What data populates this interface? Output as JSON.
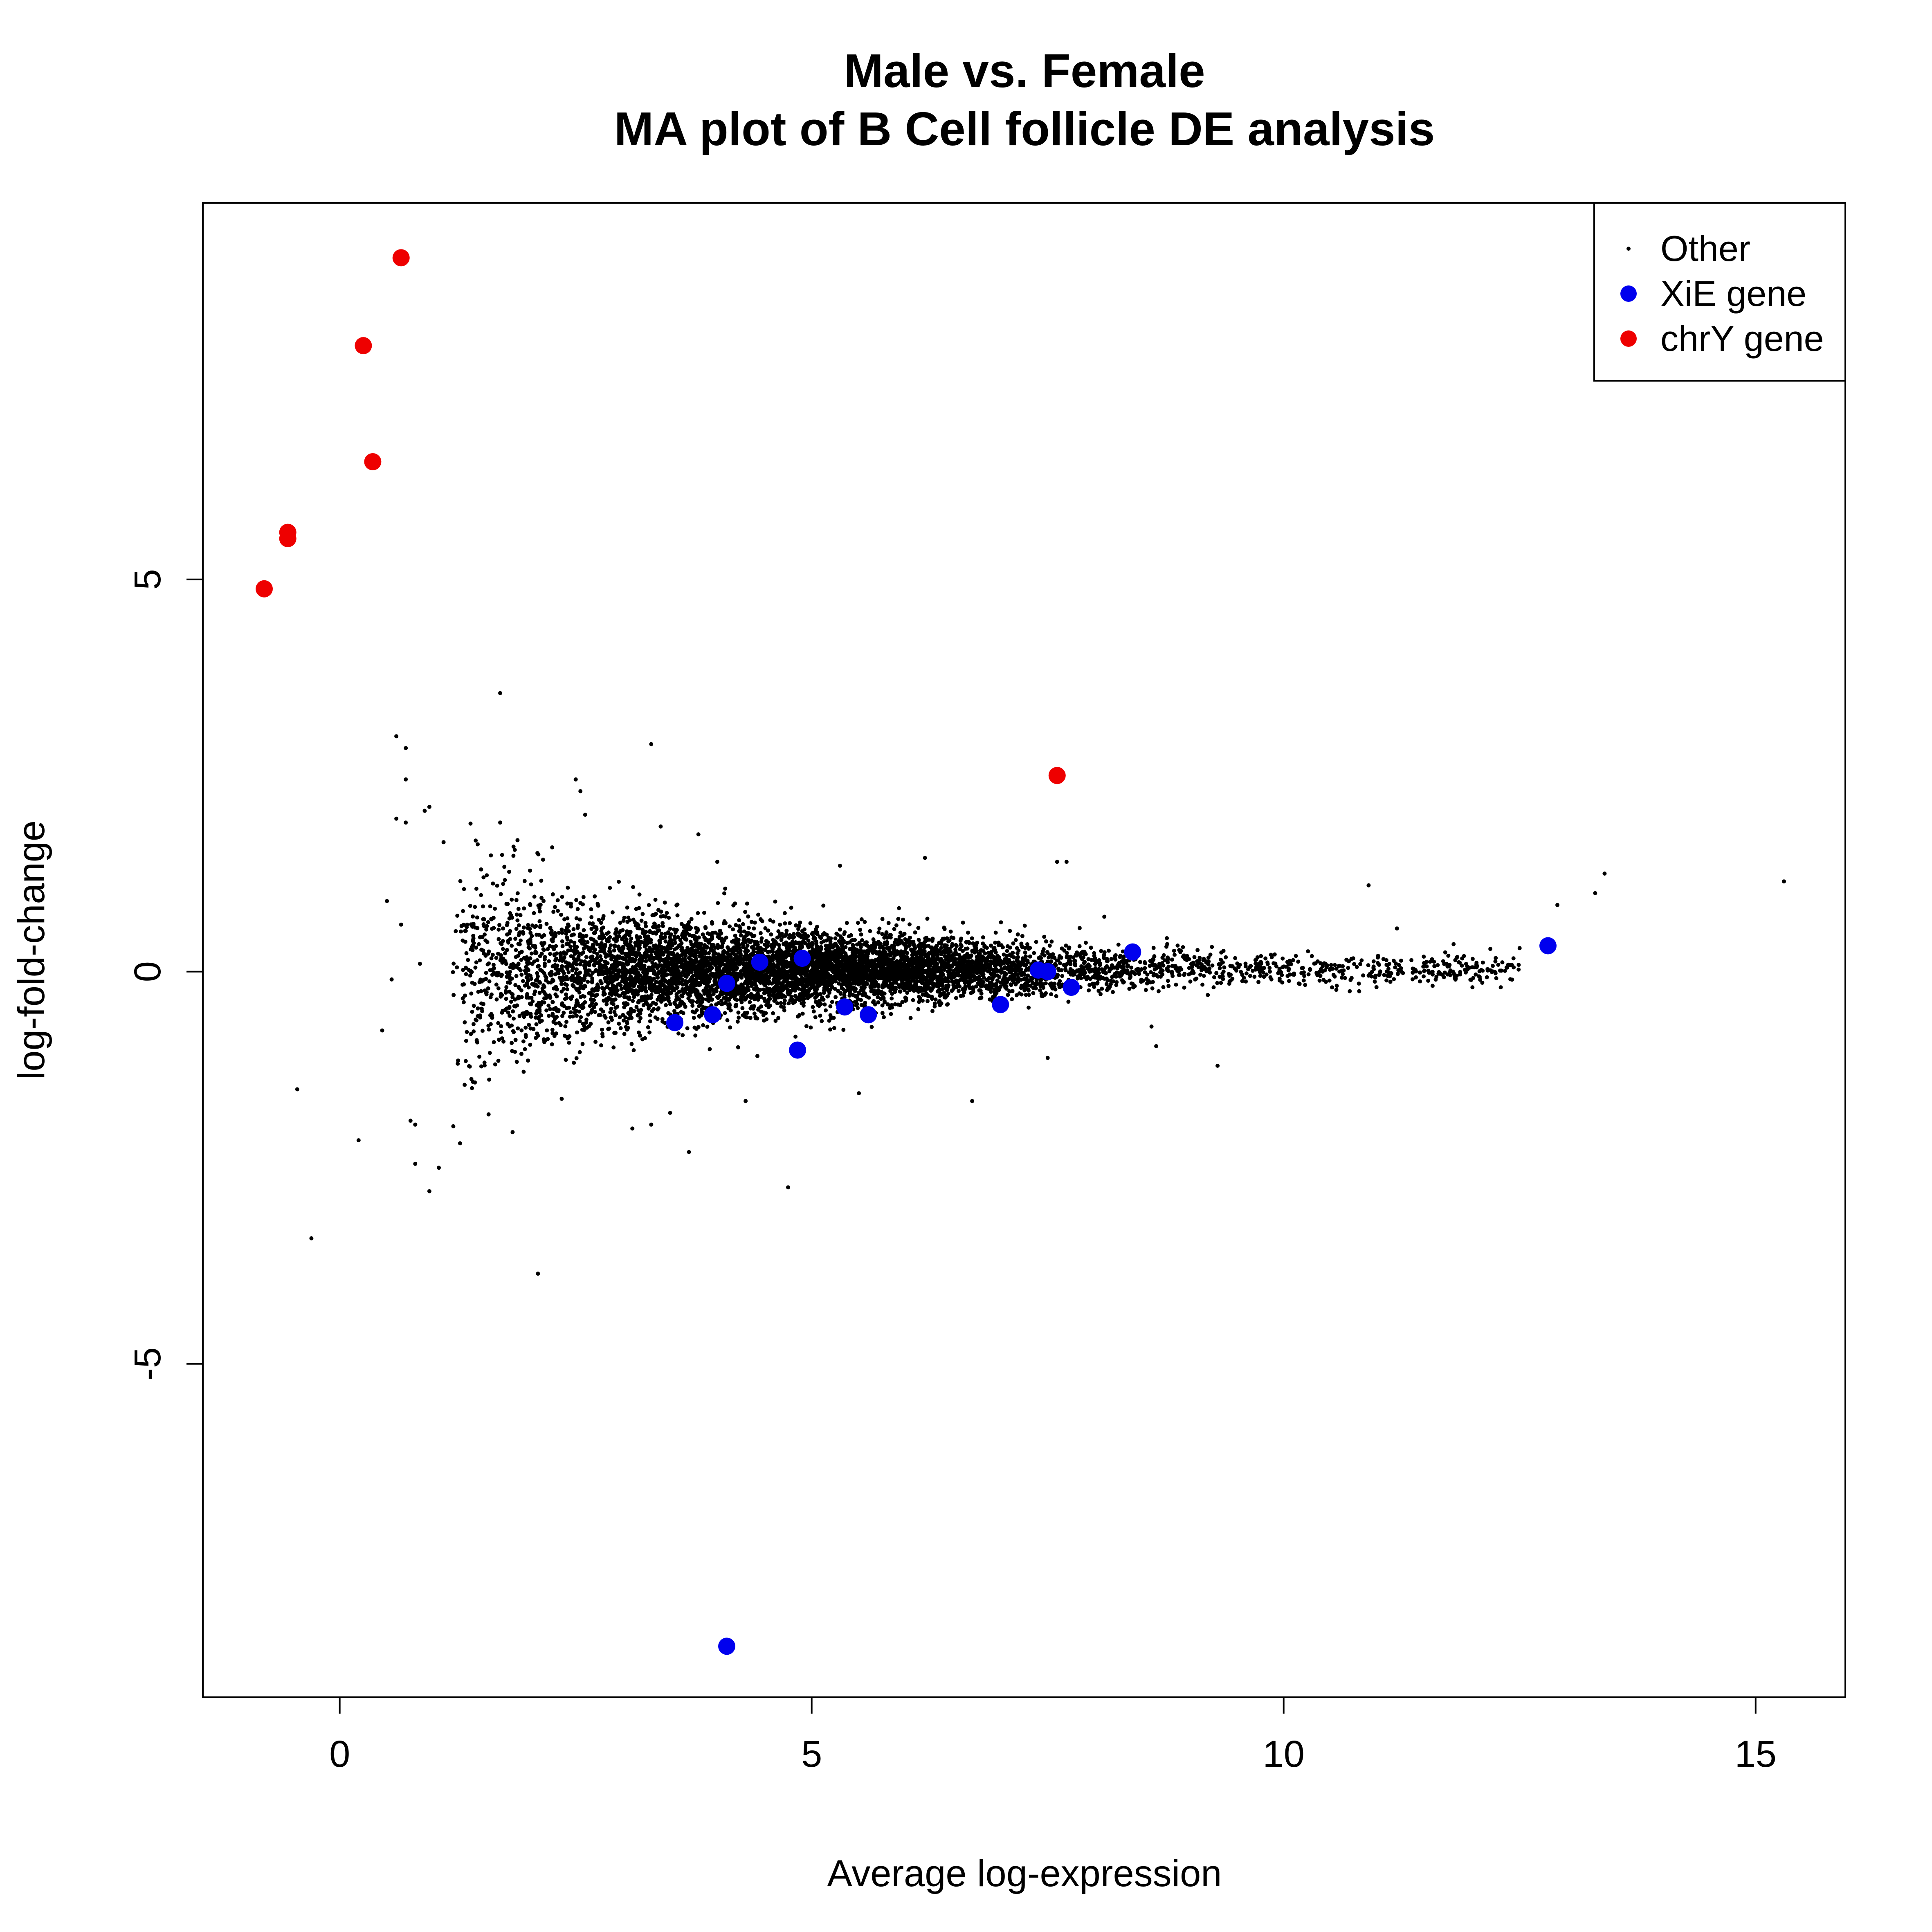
{
  "chart_data": {
    "type": "scatter",
    "title": "Male vs. Female",
    "subtitle": "MA plot of B Cell follicle DE analysis",
    "xlabel": "Average log-expression",
    "ylabel": "log-fold-change",
    "xlim": [
      -1.45,
      15.95
    ],
    "ylim": [
      -9.25,
      9.8
    ],
    "xticks": [
      0,
      5,
      10,
      15
    ],
    "yticks": [
      -5,
      0,
      5
    ],
    "xtick_labels": [
      "0",
      "5",
      "10",
      "15"
    ],
    "ytick_labels": [
      "-5",
      "0",
      "5"
    ],
    "grid": false,
    "legend": {
      "position": "top-right",
      "entries": [
        "Other",
        "XiE gene",
        "chrY gene"
      ]
    },
    "colors": {
      "Other": "#000000",
      "XiE gene": "#0000ee",
      "chrY gene": "#ee0000"
    },
    "series": [
      {
        "name": "Other",
        "marker": "small-dot",
        "bulk_cloud": {
          "x_range": [
            1.2,
            12.5
          ],
          "approx_points": 7000
        },
        "points": [
          [
            1.7,
            3.55
          ],
          [
            0.6,
            3.0
          ],
          [
            0.7,
            2.85
          ],
          [
            3.3,
            2.9
          ],
          [
            0.7,
            2.45
          ],
          [
            2.5,
            2.45
          ],
          [
            2.55,
            2.3
          ],
          [
            2.6,
            2.0
          ],
          [
            0.9,
            2.05
          ],
          [
            0.95,
            2.1
          ],
          [
            0.6,
            1.95
          ],
          [
            0.7,
            1.9
          ],
          [
            1.7,
            1.9
          ],
          [
            3.4,
            1.85
          ],
          [
            3.8,
            1.75
          ],
          [
            1.1,
            1.65
          ],
          [
            4.0,
            1.4
          ],
          [
            5.3,
            1.35
          ],
          [
            6.2,
            1.45
          ],
          [
            7.6,
            1.4
          ],
          [
            7.7,
            1.4
          ],
          [
            10.9,
            1.1
          ],
          [
            13.4,
            1.25
          ],
          [
            13.3,
            1.0
          ],
          [
            15.3,
            1.15
          ],
          [
            12.9,
            0.85
          ],
          [
            0.5,
            0.9
          ],
          [
            -0.45,
            -1.5
          ],
          [
            -0.3,
            -3.4
          ],
          [
            0.2,
            -2.15
          ],
          [
            0.8,
            -2.45
          ],
          [
            0.95,
            -2.8
          ],
          [
            1.05,
            -2.5
          ],
          [
            0.75,
            -1.9
          ],
          [
            0.8,
            -1.95
          ],
          [
            2.1,
            -3.85
          ],
          [
            4.75,
            -2.75
          ],
          [
            3.7,
            -2.3
          ],
          [
            3.1,
            -2.0
          ],
          [
            3.3,
            -1.95
          ],
          [
            3.5,
            -1.8
          ],
          [
            4.3,
            -1.65
          ],
          [
            5.5,
            -1.55
          ],
          [
            6.7,
            -1.65
          ],
          [
            7.5,
            -1.1
          ],
          [
            8.65,
            -0.95
          ],
          [
            9.3,
            -1.2
          ],
          [
            10.7,
            -0.25
          ],
          [
            10.8,
            -0.25
          ],
          [
            12.0,
            -0.2
          ],
          [
            12.3,
            -0.2
          ],
          [
            12.5,
            0.3
          ],
          [
            11.2,
            0.55
          ],
          [
            11.8,
            0.35
          ],
          [
            0.45,
            -0.75
          ],
          [
            0.65,
            0.6
          ],
          [
            0.85,
            0.1
          ],
          [
            0.55,
            -0.1
          ],
          [
            8.1,
            0.7
          ],
          [
            8.6,
            -0.7
          ]
        ]
      },
      {
        "name": "XiE gene",
        "marker": "filled-circle",
        "points": [
          [
            12.8,
            0.33
          ],
          [
            8.4,
            0.25
          ],
          [
            4.45,
            0.12
          ],
          [
            4.9,
            0.17
          ],
          [
            7.4,
            0.02
          ],
          [
            7.5,
            0.0
          ],
          [
            4.1,
            -0.15
          ],
          [
            7.75,
            -0.2
          ],
          [
            7.0,
            -0.42
          ],
          [
            5.35,
            -0.45
          ],
          [
            5.6,
            -0.55
          ],
          [
            3.95,
            -0.55
          ],
          [
            3.55,
            -0.65
          ],
          [
            4.85,
            -1.0
          ],
          [
            4.1,
            -8.6
          ]
        ]
      },
      {
        "name": "chrY gene",
        "marker": "filled-circle",
        "points": [
          [
            0.65,
            9.1
          ],
          [
            0.25,
            7.98
          ],
          [
            0.35,
            6.5
          ],
          [
            -0.55,
            5.6
          ],
          [
            -0.55,
            5.52
          ],
          [
            -0.8,
            4.88
          ],
          [
            7.6,
            2.5
          ]
        ]
      }
    ]
  }
}
